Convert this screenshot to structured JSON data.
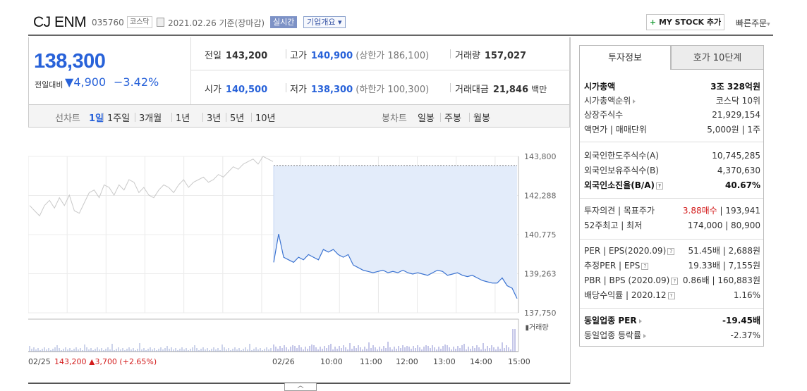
{
  "header": {
    "title": "CJ ENM",
    "code": "035760",
    "market_badge": "코스닥",
    "date_text": "2021.02.26 기준(장마감)",
    "realtime": "실시간",
    "corp_overview": "기업개요 ▾",
    "mystock_label": "MY STOCK 추가",
    "quick_order": "빠른주문"
  },
  "price": {
    "current": "138,300",
    "change_label": "전일대비",
    "change_value": "4,900",
    "change_pct": "−3.42%",
    "prev_label": "전일",
    "prev_value": "143,200",
    "high_label": "고가",
    "high_value": "140,900",
    "high_note": "(상한가 186,100)",
    "volume_label": "거래량",
    "volume_value": "157,027",
    "open_label": "시가",
    "open_value": "140,500",
    "low_label": "저가",
    "low_value": "138,300",
    "low_note": "(하한가 100,300)",
    "amount_label": "거래대금",
    "amount_value": "21,846",
    "amount_unit": "백만"
  },
  "chart_tabs": {
    "line_label": "선차트",
    "line_items": [
      "1일",
      "1주일",
      "3개월",
      "1년",
      "3년",
      "5년",
      "10년"
    ],
    "selected": "1일",
    "candle_label": "봉차트",
    "candle_items": [
      "일봉",
      "주봉",
      "월봉"
    ]
  },
  "chart_data": {
    "type": "line",
    "y_ticks": [
      "143,800",
      "142,288",
      "140,775",
      "139,263",
      "137,750"
    ],
    "ylim": [
      137750,
      143800
    ],
    "x_labels": [
      "02/25",
      "02/26",
      "10:00",
      "11:00",
      "12:00",
      "13:00",
      "14:00",
      "15:00"
    ],
    "prev_day_summary": "143,200",
    "prev_day_change": "3,700",
    "prev_day_pct": "(+2.65%)",
    "volume_legend": "거래량",
    "prev_day_series": [
      141900,
      141700,
      141500,
      141900,
      142100,
      141800,
      142200,
      141900,
      142300,
      141700,
      141600,
      142000,
      142400,
      142500,
      142200,
      142700,
      142600,
      142300,
      142700,
      142500,
      142900,
      142800,
      142400,
      142600,
      142300,
      142200,
      142500,
      142700,
      142600,
      142400,
      142700,
      142900,
      142600,
      142800,
      142900,
      143000,
      142800,
      142900,
      143100,
      143000,
      143200,
      143400,
      143300,
      143500,
      143600,
      143700,
      143500,
      143800,
      143700,
      143600
    ],
    "today_series": [
      139700,
      140800,
      139900,
      139800,
      139700,
      139900,
      139800,
      140000,
      139900,
      139800,
      140200,
      140100,
      140200,
      140000,
      139900,
      140000,
      139600,
      139500,
      139400,
      139350,
      139300,
      139350,
      139400,
      139300,
      139350,
      139300,
      139400,
      139300,
      139250,
      139300,
      139250,
      139200,
      139300,
      139400,
      139350,
      139200,
      139250,
      139300,
      139200,
      139150,
      139200,
      139100,
      139000,
      138950,
      138900,
      138900,
      139100,
      138800,
      138700,
      138300
    ],
    "prev_close_ref": 143450
  },
  "invest_panel": {
    "tab_on": "투자정보",
    "tab_off": "호가 10단계",
    "market_cap_label": "시가총액",
    "market_cap": "3조 328억원",
    "cap_rank_label": "시가총액순위",
    "cap_rank": "코스닥 10위",
    "shares_label": "상장주식수",
    "shares": "21,929,154",
    "par_label": "액면가 | 매매단위",
    "par": "5,000원 | 1주",
    "foreign_limit_label": "외국인한도주식수(A)",
    "foreign_limit": "10,745,285",
    "foreign_hold_label": "외국인보유주식수(B)",
    "foreign_hold": "4,370,630",
    "foreign_ratio_label": "외국인소진율(B/A)",
    "foreign_ratio": "40.67%",
    "opinion_label": "투자의견 | 목표주가",
    "opinion": "3.88매수",
    "target": "193,941",
    "range52_label": "52주최고 | 최저",
    "range52": "174,000 | 80,900",
    "per_label": "PER | EPS(2020.09)",
    "per": "51.45배 | 2,688원",
    "est_per_label": "추정PER | EPS",
    "est_per": "19.33배 | 7,155원",
    "pbr_label": "PBR | BPS (2020.09)",
    "pbr": "0.86배 | 160,883원",
    "div_label": "배당수익률 | 2020.12",
    "div": "1.16%",
    "sector_per_label": "동일업종 PER",
    "sector_per": "-19.45배",
    "sector_chg_label": "동일업종 등락률",
    "sector_chg": "-2.37%"
  }
}
